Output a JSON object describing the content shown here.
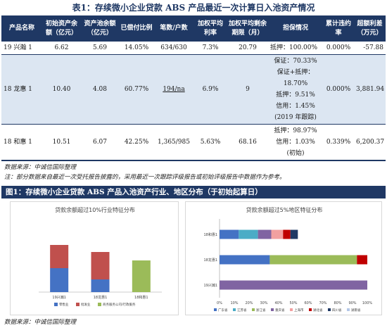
{
  "table": {
    "title": "表1：存续微小企业贷款 ABS 产品最近一次计算日入池资产情况",
    "headers": [
      "产品名称",
      "初始资产余额（亿元）",
      "资产池余额（亿元）",
      "已偿付比例",
      "笔数/户数",
      "加权平均利率",
      "加权平均剩余期限（月）",
      "担保情况",
      "累计违约率",
      "超额利差（万元）"
    ],
    "rows": [
      {
        "name": "19 兴瀚 1",
        "initial": "6.62",
        "pool": "5.69",
        "repaid": "14.05%",
        "count": "634/630",
        "rate": "7.3%",
        "term": "20.79",
        "guarantee": [
          "抵押：100.00%"
        ],
        "default": "0.000%",
        "spread": "-57.88"
      },
      {
        "name": "18 龙惠 1",
        "initial": "10.40",
        "pool": "4.08",
        "repaid": "60.77%",
        "count": "194/na",
        "rate": "6.9%",
        "term": "9",
        "guarantee": [
          "保证：70.33%",
          "保证+抵押：",
          "18.70%",
          "抵押：9.51%",
          "信用：1.45%",
          "(2019 年跟踪)"
        ],
        "default": "0.000%",
        "spread": "3,881.94"
      },
      {
        "name": "18 和惠 1",
        "initial": "10.51",
        "pool": "6.07",
        "repaid": "42.25%",
        "count": "1,365/985",
        "rate": "5.63%",
        "term": "68.16",
        "guarantee": [
          "抵押：98.97%",
          "信用：1.03%",
          "(初始)"
        ],
        "default": "0.339%",
        "spread": "6,200.37"
      }
    ]
  },
  "notes": {
    "source1": "数据来源：中诚信国际整理",
    "remark": "注：部分数据来自最近一次受托报告披露的，采用最近一次跟踪评级报告或初始评级报告中数据作为参考。",
    "source2": "数据来源：中诚信国际整理"
  },
  "figure": {
    "title": "图1：存续微小企业贷款 ABS 产品入池资产行业、地区分布（于初始起算日）"
  },
  "chart_data": [
    {
      "type": "bar",
      "stacked": true,
      "title": "贷款余额超过10%行业特征分布",
      "categories": [
        "19兴瀚1",
        "18龙惠1",
        "18和惠1"
      ],
      "series": [
        {
          "name": "零售业",
          "color": "#4472c4",
          "values": [
            34,
            18,
            0
          ]
        },
        {
          "name": "批发业",
          "color": "#c0504d",
          "values": [
            33,
            39,
            0
          ]
        },
        {
          "name": "商务服务公司/行政服务",
          "color": "#9bbb59",
          "values": [
            0,
            0,
            45
          ]
        }
      ]
    },
    {
      "type": "bar",
      "orientation": "horizontal",
      "stacked": true,
      "title": "贷款余额超过5%地区特征分布",
      "categories": [
        "18和惠1",
        "18龙惠1",
        "19兴瀚1"
      ],
      "x_ticks": [
        "0%",
        "10%",
        "20%",
        "30%",
        "40%",
        "50%",
        "60%",
        "70%",
        "80%",
        "90%",
        "100%"
      ],
      "series": [
        {
          "name": "广东省",
          "color": "#4472c4",
          "values": [
            13,
            34,
            0
          ]
        },
        {
          "name": "江苏省",
          "color": "#4bacc6",
          "values": [
            13,
            0,
            0
          ]
        },
        {
          "name": "浙江省",
          "color": "#9bbb59",
          "values": [
            0,
            59,
            0
          ]
        },
        {
          "name": "重庆省",
          "color": "#8064a2",
          "values": [
            9,
            0,
            100
          ]
        },
        {
          "name": "上海市",
          "color": "#f2a0a0",
          "values": [
            8,
            0,
            0
          ]
        },
        {
          "name": "湖北省",
          "color": "#c00000",
          "values": [
            5,
            7,
            0
          ]
        },
        {
          "name": "四川省",
          "color": "#1f3864",
          "values": [
            5,
            0,
            0
          ]
        },
        {
          "name": "湖南省",
          "color": "#b4c7e7",
          "values": [
            0,
            0,
            0
          ]
        }
      ]
    }
  ]
}
